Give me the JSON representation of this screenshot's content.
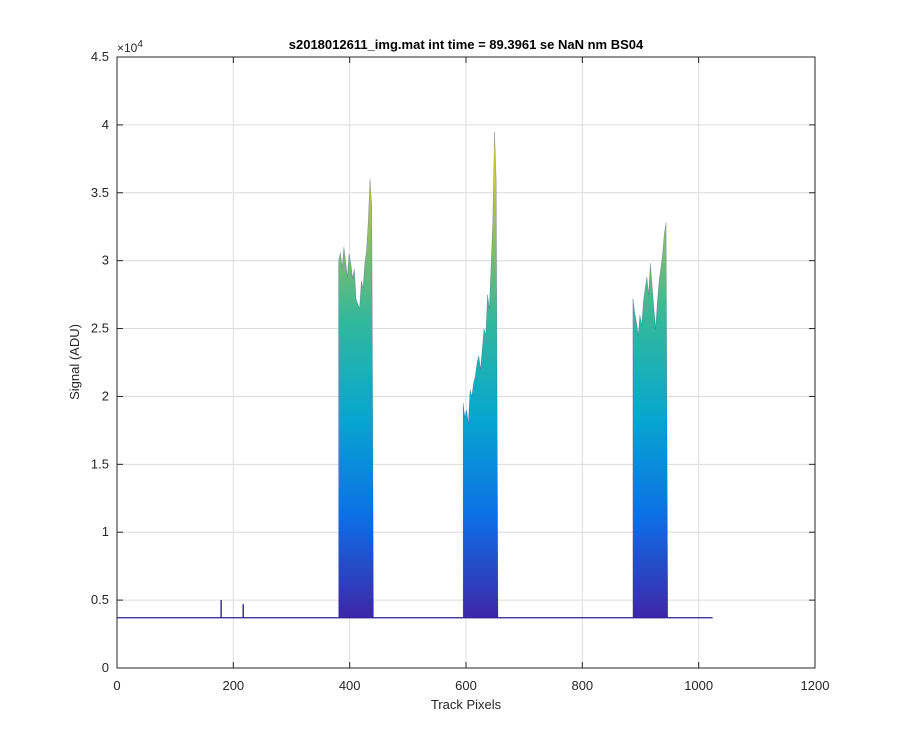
{
  "chart_data": {
    "type": "area",
    "title": "s2018012611_img.mat int time = 89.3961 se  NaN nm BS04",
    "xlabel": "Track Pixels",
    "ylabel": "Signal (ADU)",
    "y_exponent_label": "×10",
    "y_exponent_power": "4",
    "xlim": [
      0,
      1200
    ],
    "ylim": [
      0,
      4.5
    ],
    "y_scale_factor": 10000,
    "x_ticks": [
      "0",
      "200",
      "400",
      "600",
      "800",
      "1000",
      "1200"
    ],
    "y_ticks": [
      "0",
      "0.5",
      "1",
      "1.5",
      "2",
      "2.5",
      "3",
      "3.5",
      "4",
      "4.5"
    ],
    "grid": true,
    "colormap": [
      "#3e26a8",
      "#0d6ee6",
      "#06a6cf",
      "#32b89b",
      "#9fbe5a",
      "#f9d323"
    ],
    "line_color": "#27238a",
    "baseline": 0.37,
    "x_end": 1024,
    "spikes": [
      {
        "x": 179,
        "y": 0.5
      },
      {
        "x": 217,
        "y": 0.47
      }
    ],
    "peaks": [
      {
        "x": [
          381,
          384,
          387,
          390,
          393,
          396,
          399,
          402,
          405,
          408,
          411,
          414,
          417,
          420,
          423,
          426,
          429,
          432,
          435,
          438,
          441
        ],
        "y": [
          3.0,
          3.06,
          2.95,
          3.1,
          3.0,
          2.88,
          3.05,
          2.98,
          2.87,
          2.94,
          2.72,
          2.68,
          2.65,
          2.85,
          2.8,
          2.98,
          3.07,
          3.3,
          3.6,
          3.4,
          0.4
        ]
      },
      {
        "x": [
          595,
          598,
          601,
          604,
          607,
          610,
          613,
          616,
          619,
          622,
          625,
          628,
          631,
          634,
          637,
          640,
          643,
          646,
          649,
          652,
          655
        ],
        "y": [
          1.95,
          1.85,
          1.9,
          1.8,
          2.05,
          2.0,
          2.1,
          2.15,
          2.25,
          2.3,
          2.2,
          2.35,
          2.5,
          2.45,
          2.75,
          2.65,
          2.95,
          3.3,
          3.95,
          3.6,
          0.4
        ]
      },
      {
        "x": [
          887,
          890,
          893,
          896,
          899,
          902,
          905,
          908,
          911,
          914,
          917,
          920,
          923,
          926,
          929,
          932,
          935,
          938,
          941,
          944,
          947
        ],
        "y": [
          2.72,
          2.62,
          2.55,
          2.45,
          2.6,
          2.52,
          2.7,
          2.8,
          2.88,
          2.75,
          2.98,
          2.82,
          2.65,
          2.5,
          2.7,
          2.85,
          2.95,
          3.05,
          3.2,
          3.28,
          0.4
        ]
      }
    ]
  }
}
